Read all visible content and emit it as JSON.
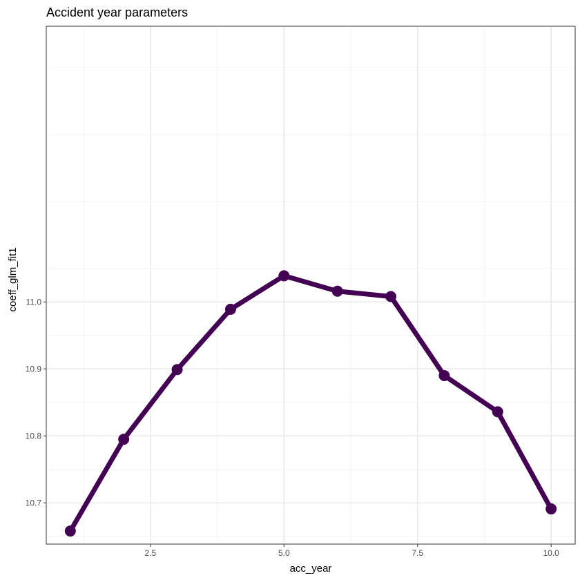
{
  "chart_data": {
    "type": "line",
    "title": "Accident year parameters",
    "xlabel": "acc_year",
    "ylabel": "coeff_glm_fit1",
    "xlim": [
      0.55,
      10.45
    ],
    "ylim": [
      10.6385,
      11.4115
    ],
    "x_ticks": [
      2.5,
      5.0,
      7.5,
      10.0
    ],
    "x_tick_labels": [
      "2.5",
      "5.0",
      "7.5",
      "10.0"
    ],
    "y_ticks": [
      10.7,
      10.8,
      10.9,
      11.0
    ],
    "y_tick_labels": [
      "10.7",
      "10.8",
      "10.9",
      "11.0"
    ],
    "grid": true,
    "series": [
      {
        "color": "#440154",
        "x": [
          1,
          2,
          3,
          4,
          5,
          6,
          7,
          8,
          9,
          10
        ],
        "y": [
          10.658,
          10.795,
          10.899,
          10.989,
          11.039,
          11.016,
          11.008,
          10.89,
          10.836,
          10.691
        ]
      }
    ]
  }
}
